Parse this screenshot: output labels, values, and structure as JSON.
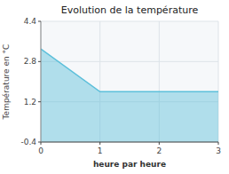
{
  "chart_data": {
    "type": "area",
    "title": "Evolution de la température",
    "xlabel": "heure par heure",
    "ylabel": "Température en °C",
    "x": [
      0,
      1,
      2,
      3
    ],
    "values": [
      3.3,
      1.6,
      1.6,
      1.6
    ],
    "color": "#5bbfda",
    "xlim": [
      0,
      3
    ],
    "ylim": [
      -0.4,
      4.4
    ],
    "xticks": [
      0,
      1,
      2,
      3
    ],
    "yticks": [
      -0.4,
      1.2,
      2.8,
      4.4
    ],
    "grid": true
  }
}
